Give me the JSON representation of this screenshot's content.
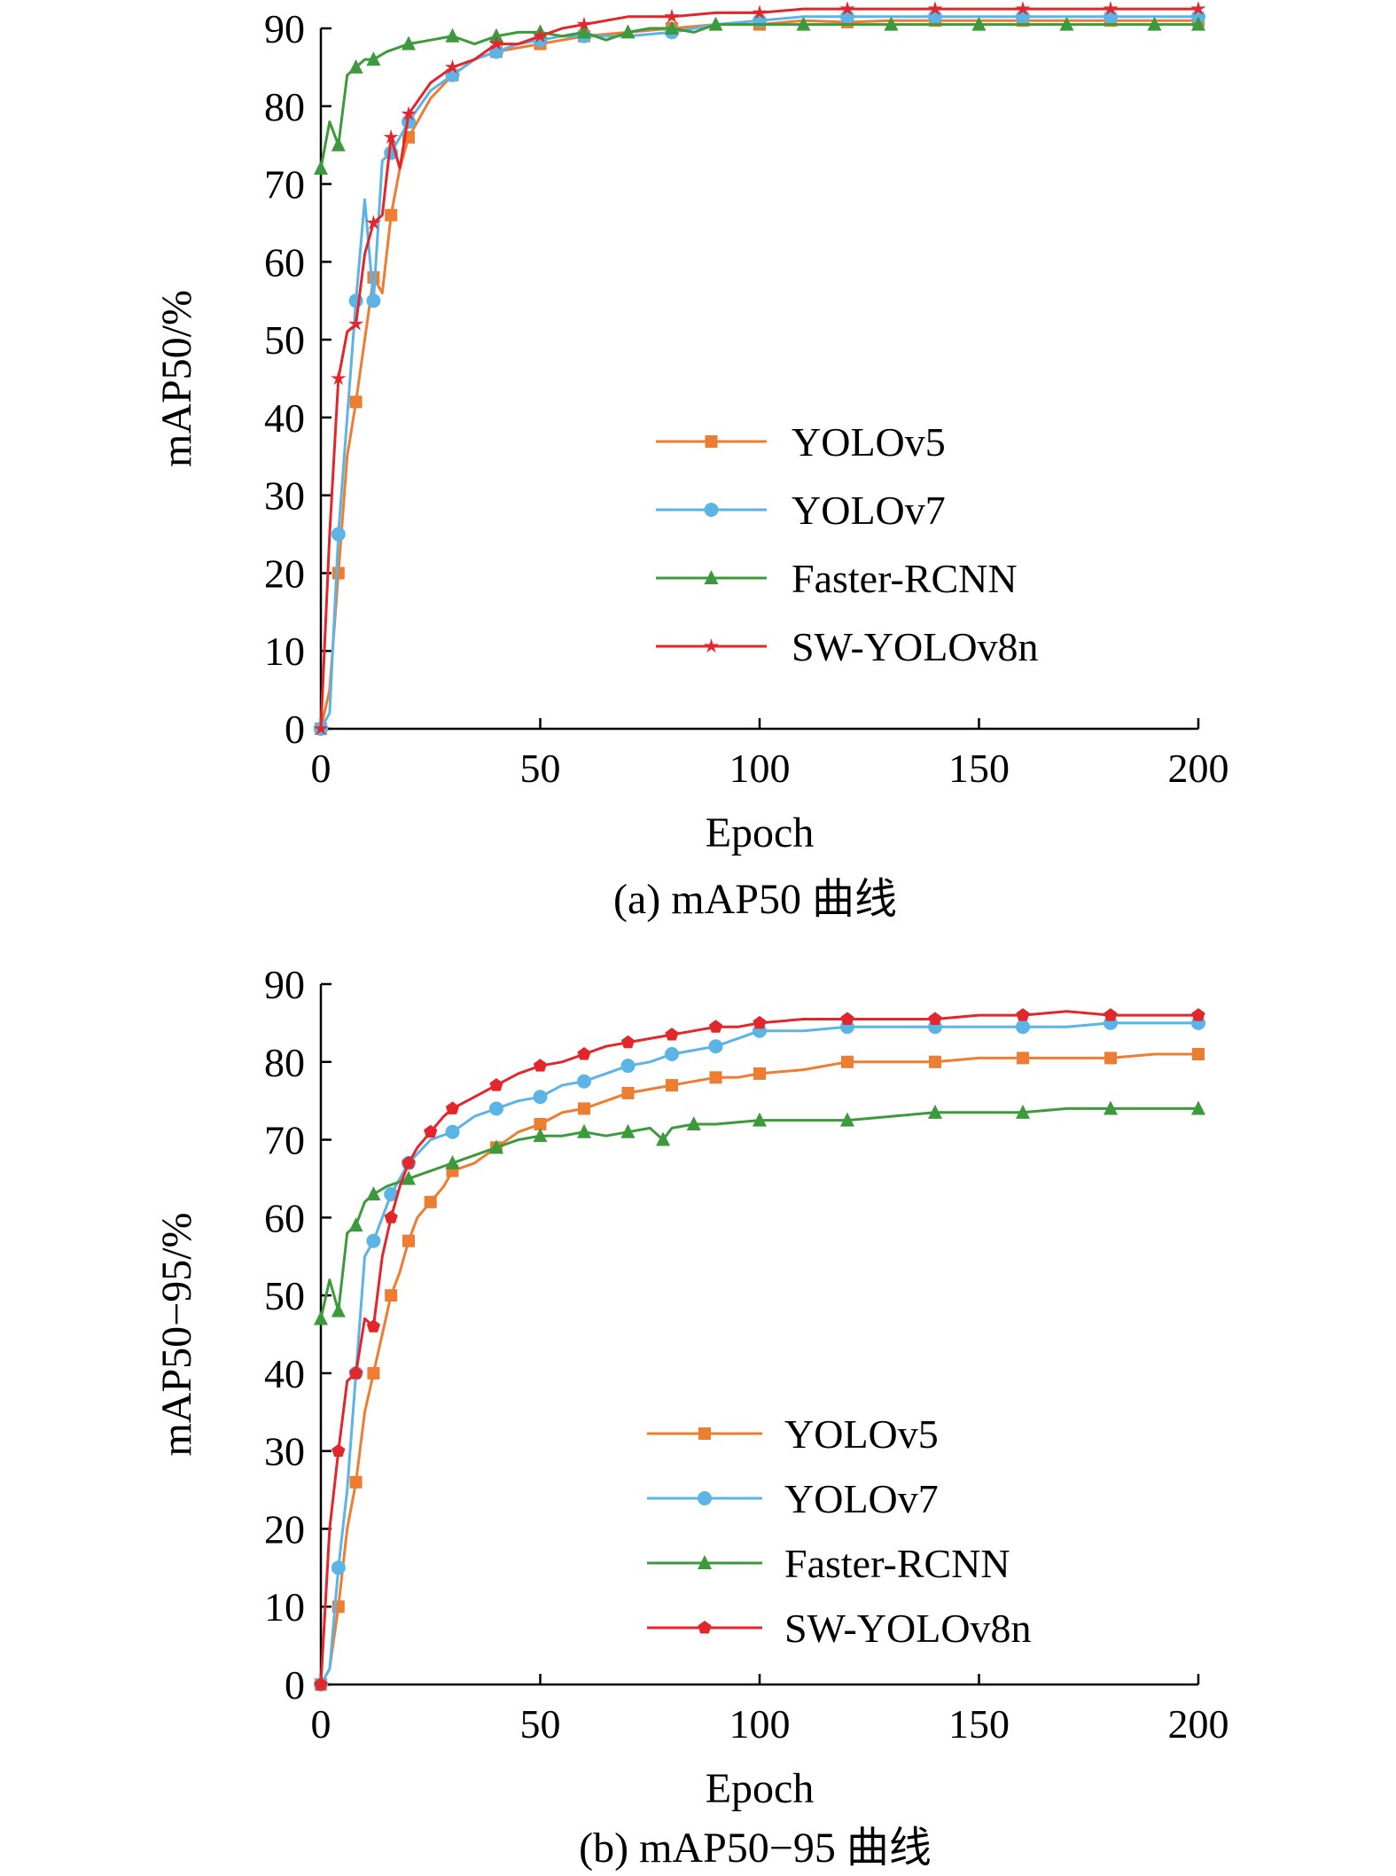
{
  "chart_data": [
    {
      "type": "line",
      "caption": "(a) mAP50 曲线",
      "xlabel": "Epoch",
      "ylabel": "mAP50/%",
      "xlim": [
        0,
        200
      ],
      "ylim": [
        0,
        90
      ],
      "xticks": [
        0,
        50,
        100,
        150,
        200
      ],
      "yticks": [
        0,
        10,
        20,
        30,
        40,
        50,
        60,
        70,
        80,
        90
      ],
      "grid": false,
      "legend_position": "center-right",
      "series": [
        {
          "name": "YOLOv5",
          "color": "#ED7D31",
          "marker": "square",
          "x": [
            0,
            2,
            4,
            6,
            8,
            10,
            12,
            14,
            16,
            18,
            20,
            25,
            30,
            35,
            40,
            45,
            50,
            55,
            60,
            70,
            80,
            90,
            100,
            110,
            120,
            130,
            140,
            150,
            160,
            170,
            180,
            190,
            200
          ],
          "y": [
            0,
            5,
            20,
            35,
            42,
            50,
            58,
            56,
            66,
            72,
            76,
            81,
            84,
            86,
            87,
            87.5,
            88,
            88.5,
            89,
            89.5,
            90,
            90.5,
            90.5,
            91,
            90.8,
            91,
            91,
            91,
            91,
            91,
            91,
            91,
            91
          ]
        },
        {
          "name": "YOLOv7",
          "color": "#5BB4E5",
          "marker": "circle",
          "x": [
            0,
            2,
            4,
            6,
            8,
            10,
            12,
            14,
            16,
            18,
            20,
            25,
            30,
            35,
            40,
            45,
            50,
            55,
            60,
            70,
            80,
            90,
            100,
            110,
            120,
            130,
            140,
            150,
            160,
            170,
            180,
            190,
            200
          ],
          "y": [
            0,
            2,
            25,
            40,
            55,
            68,
            55,
            73,
            74,
            76,
            78,
            82,
            84,
            86,
            87,
            88,
            88.5,
            89,
            89,
            89,
            89.5,
            90.5,
            91,
            91.5,
            91.5,
            91.5,
            91.5,
            91.5,
            91.5,
            91.5,
            91.5,
            91.5,
            91.5
          ]
        },
        {
          "name": "Faster-RCNN",
          "color": "#3C9A3C",
          "marker": "triangle",
          "x": [
            0,
            2,
            4,
            6,
            8,
            10,
            12,
            15,
            20,
            25,
            30,
            35,
            40,
            45,
            50,
            55,
            60,
            65,
            70,
            75,
            80,
            85,
            90,
            100,
            110,
            120,
            130,
            140,
            150,
            160,
            170,
            180,
            190,
            200
          ],
          "y": [
            72,
            78,
            75,
            84,
            85,
            86,
            86,
            87,
            88,
            88.5,
            89,
            88,
            89,
            89.5,
            89.5,
            89,
            89.5,
            88.5,
            89.5,
            90,
            90,
            89.5,
            90.5,
            90.5,
            90.5,
            90.5,
            90.5,
            90.5,
            90.5,
            90.5,
            90.5,
            90.5,
            90.5,
            90.5
          ]
        },
        {
          "name": "SW-YOLOv8n",
          "color": "#E3262B",
          "marker": "star",
          "x": [
            0,
            2,
            4,
            6,
            8,
            10,
            12,
            14,
            16,
            18,
            20,
            25,
            30,
            35,
            40,
            45,
            50,
            55,
            60,
            70,
            80,
            90,
            100,
            110,
            120,
            130,
            140,
            150,
            160,
            170,
            180,
            190,
            200
          ],
          "y": [
            0,
            25,
            45,
            51,
            52,
            61,
            65,
            66,
            76,
            72,
            79,
            83,
            85,
            86,
            88,
            88,
            89,
            90,
            90.5,
            91.5,
            91.5,
            92,
            92,
            92.5,
            92.5,
            92.5,
            92.5,
            92.5,
            92.5,
            92.5,
            92.5,
            92.5,
            92.5
          ]
        }
      ]
    },
    {
      "type": "line",
      "caption": "(b) mAP50−95 曲线",
      "xlabel": "Epoch",
      "ylabel": "mAP50−95/%",
      "xlim": [
        0,
        200
      ],
      "ylim": [
        0,
        90
      ],
      "xticks": [
        0,
        50,
        100,
        150,
        200
      ],
      "yticks": [
        0,
        10,
        20,
        30,
        40,
        50,
        60,
        70,
        80,
        90
      ],
      "grid": false,
      "legend_position": "bottom-right",
      "series": [
        {
          "name": "YOLOv5",
          "color": "#ED7D31",
          "marker": "square",
          "x": [
            0,
            2,
            4,
            6,
            8,
            10,
            12,
            14,
            16,
            18,
            20,
            22,
            25,
            28,
            30,
            35,
            40,
            45,
            50,
            55,
            60,
            65,
            70,
            75,
            80,
            85,
            90,
            95,
            100,
            110,
            120,
            130,
            140,
            150,
            160,
            170,
            180,
            190,
            200
          ],
          "y": [
            0,
            2,
            10,
            20,
            26,
            35,
            40,
            45,
            50,
            53,
            57,
            60,
            62,
            64,
            66,
            67,
            69,
            71,
            72,
            73.5,
            74,
            75,
            76,
            76.5,
            77,
            77.5,
            78,
            78,
            78.5,
            79,
            80,
            80,
            80,
            80.5,
            80.5,
            80.5,
            80.5,
            81,
            81
          ]
        },
        {
          "name": "YOLOv7",
          "color": "#5BB4E5",
          "marker": "circle",
          "x": [
            0,
            2,
            4,
            6,
            8,
            10,
            12,
            14,
            16,
            18,
            20,
            25,
            30,
            35,
            40,
            45,
            50,
            55,
            60,
            65,
            70,
            75,
            80,
            85,
            90,
            95,
            100,
            110,
            120,
            130,
            140,
            150,
            160,
            170,
            180,
            190,
            200
          ],
          "y": [
            0,
            2,
            15,
            25,
            40,
            55,
            57,
            60,
            63,
            65,
            67,
            70,
            71,
            73,
            74,
            75,
            75.5,
            77,
            77.5,
            78.5,
            79.5,
            80,
            81,
            81.5,
            82,
            83,
            84,
            84,
            84.5,
            84.5,
            84.5,
            84.5,
            84.5,
            84.5,
            85,
            85,
            85
          ]
        },
        {
          "name": "Faster-RCNN",
          "color": "#3C9A3C",
          "marker": "triangle",
          "x": [
            0,
            2,
            4,
            6,
            8,
            10,
            12,
            15,
            20,
            25,
            30,
            35,
            40,
            45,
            50,
            55,
            60,
            65,
            70,
            75,
            78,
            80,
            85,
            90,
            100,
            110,
            120,
            130,
            140,
            150,
            160,
            170,
            180,
            190,
            200
          ],
          "y": [
            47,
            52,
            48,
            58,
            59,
            62,
            63,
            64,
            65,
            66,
            67,
            68,
            69,
            70,
            70.5,
            70.5,
            71,
            70.5,
            71,
            71.5,
            70,
            71.5,
            72,
            72,
            72.5,
            72.5,
            72.5,
            73,
            73.5,
            73.5,
            73.5,
            74,
            74,
            74,
            74
          ]
        },
        {
          "name": "SW-YOLOv8n",
          "color": "#E3262B",
          "marker": "pentagon",
          "x": [
            0,
            2,
            4,
            6,
            8,
            10,
            12,
            14,
            16,
            18,
            20,
            22,
            25,
            28,
            30,
            35,
            40,
            45,
            50,
            55,
            60,
            65,
            70,
            75,
            80,
            85,
            90,
            95,
            100,
            110,
            120,
            130,
            140,
            150,
            160,
            170,
            180,
            190,
            200
          ],
          "y": [
            0,
            20,
            30,
            39,
            40,
            47,
            46,
            55,
            60,
            64,
            67,
            69,
            71,
            73,
            74,
            75.5,
            77,
            78.5,
            79.5,
            80,
            81,
            82,
            82.5,
            83,
            83.5,
            84,
            84.5,
            84.5,
            85,
            85.5,
            85.5,
            85.5,
            85.5,
            86,
            86,
            86.5,
            86,
            86,
            86
          ]
        }
      ]
    }
  ]
}
